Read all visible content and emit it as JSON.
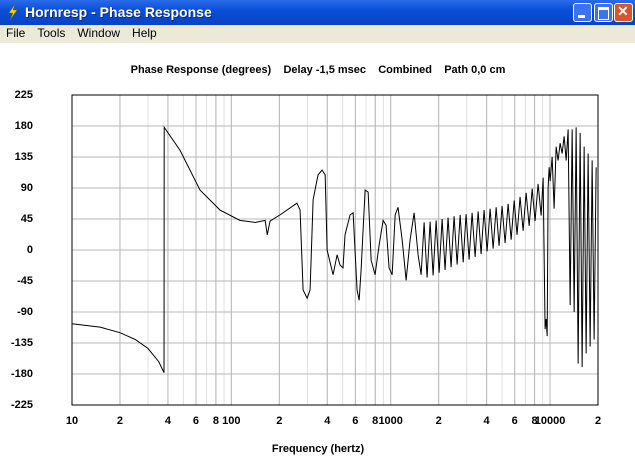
{
  "window": {
    "title": "Hornresp - Phase Response",
    "menu": [
      "File",
      "Tools",
      "Window",
      "Help"
    ]
  },
  "chart_data": {
    "type": "line",
    "title": "Phase Response (degrees)    Delay -1,5 msec    Combined    Path 0,0 cm",
    "x_label": "Frequency (hertz)",
    "x_log": true,
    "grid": true,
    "color": "#000000",
    "xlim": [
      10,
      20000
    ],
    "ylim": [
      -225,
      225
    ],
    "yticks": [
      225,
      180,
      135,
      90,
      45,
      0,
      -45,
      -90,
      -135,
      -180,
      -225
    ],
    "xticks": [
      10,
      {
        "value": 20,
        "label": "2"
      },
      {
        "value": 40,
        "label": "4"
      },
      {
        "value": 60,
        "label": "6"
      },
      {
        "value": 80,
        "label": "8"
      },
      100,
      {
        "value": 200,
        "label": "2"
      },
      {
        "value": 400,
        "label": "4"
      },
      {
        "value": 600,
        "label": "6"
      },
      {
        "value": 800,
        "label": "8"
      },
      1000,
      {
        "value": 2000,
        "label": "2"
      },
      {
        "value": 4000,
        "label": "4"
      },
      {
        "value": 6000,
        "label": "6"
      },
      {
        "value": 8000,
        "label": "8"
      },
      10000,
      {
        "value": 20000,
        "label": "2"
      }
    ],
    "x": [
      10,
      15,
      20,
      25,
      30,
      35,
      37.8,
      37.9,
      47.6,
      63.6,
      84.9,
      113,
      141,
      163,
      168,
      175,
      202,
      258,
      270,
      282,
      299,
      312,
      326,
      350,
      371,
      388,
      399,
      435,
      461,
      481,
      502,
      517,
      556,
      581,
      615,
      634,
      652,
      691,
      722,
      754,
      798,
      846,
      896,
      935,
      977,
      1021,
      1067,
      1112,
      1180,
      1250,
      1324,
      1403,
      1486,
      1552,
      1621,
      1692,
      1768,
      1846,
      1928,
      2014,
      2103,
      2194,
      2291,
      2393,
      2500,
      2612,
      2729,
      2851,
      2972,
      3105,
      3243,
      3388,
      3539,
      3693,
      3855,
      4028,
      4207,
      4395,
      4592,
      4786,
      5000,
      5224,
      5457,
      5702,
      5957,
      6209,
      6486,
      6776,
      7079,
      7396,
      7727,
      8054,
      8414,
      8790,
      9052,
      9311,
      9452,
      9595,
      9727,
      9872,
      10014,
      10308,
      10610,
      10921,
      11240,
      11571,
      11912,
      12262,
      12622,
      12991,
      13373,
      13765,
      14170,
      14583,
      15011,
      15450,
      15903,
      16370,
      16850,
      17343,
      17852,
      18376,
      18913,
      19468
    ],
    "values": [
      -107,
      -112,
      -120,
      -130,
      -143,
      -162,
      -178,
      178,
      145,
      87,
      58,
      43,
      40,
      43,
      22,
      42,
      51,
      68,
      58,
      -58,
      -70,
      -58,
      73,
      109,
      116,
      109,
      0,
      -36,
      -7,
      -22,
      -26,
      22,
      51,
      54,
      -58,
      -73,
      -29,
      87,
      84,
      -15,
      -36,
      7,
      43,
      36,
      -26,
      -36,
      51,
      62,
      15,
      -44,
      15,
      54,
      -7,
      -36,
      40,
      -40,
      41,
      -37,
      43,
      -33,
      45,
      -29,
      47,
      -25,
      49,
      -21,
      51,
      -18,
      52,
      -14,
      54,
      -10,
      56,
      -6,
      58,
      -2,
      60,
      2,
      62,
      6,
      64,
      10,
      67,
      15,
      72,
      22,
      77,
      28,
      83,
      35,
      89,
      42,
      96,
      50,
      105,
      -115,
      -100,
      -125,
      90,
      120,
      100,
      135,
      60,
      150,
      130,
      155,
      140,
      165,
      130,
      175,
      -80,
      175,
      -90,
      178,
      -165,
      170,
      -170,
      150,
      -150,
      140,
      -140,
      130,
      -130,
      120
    ]
  }
}
